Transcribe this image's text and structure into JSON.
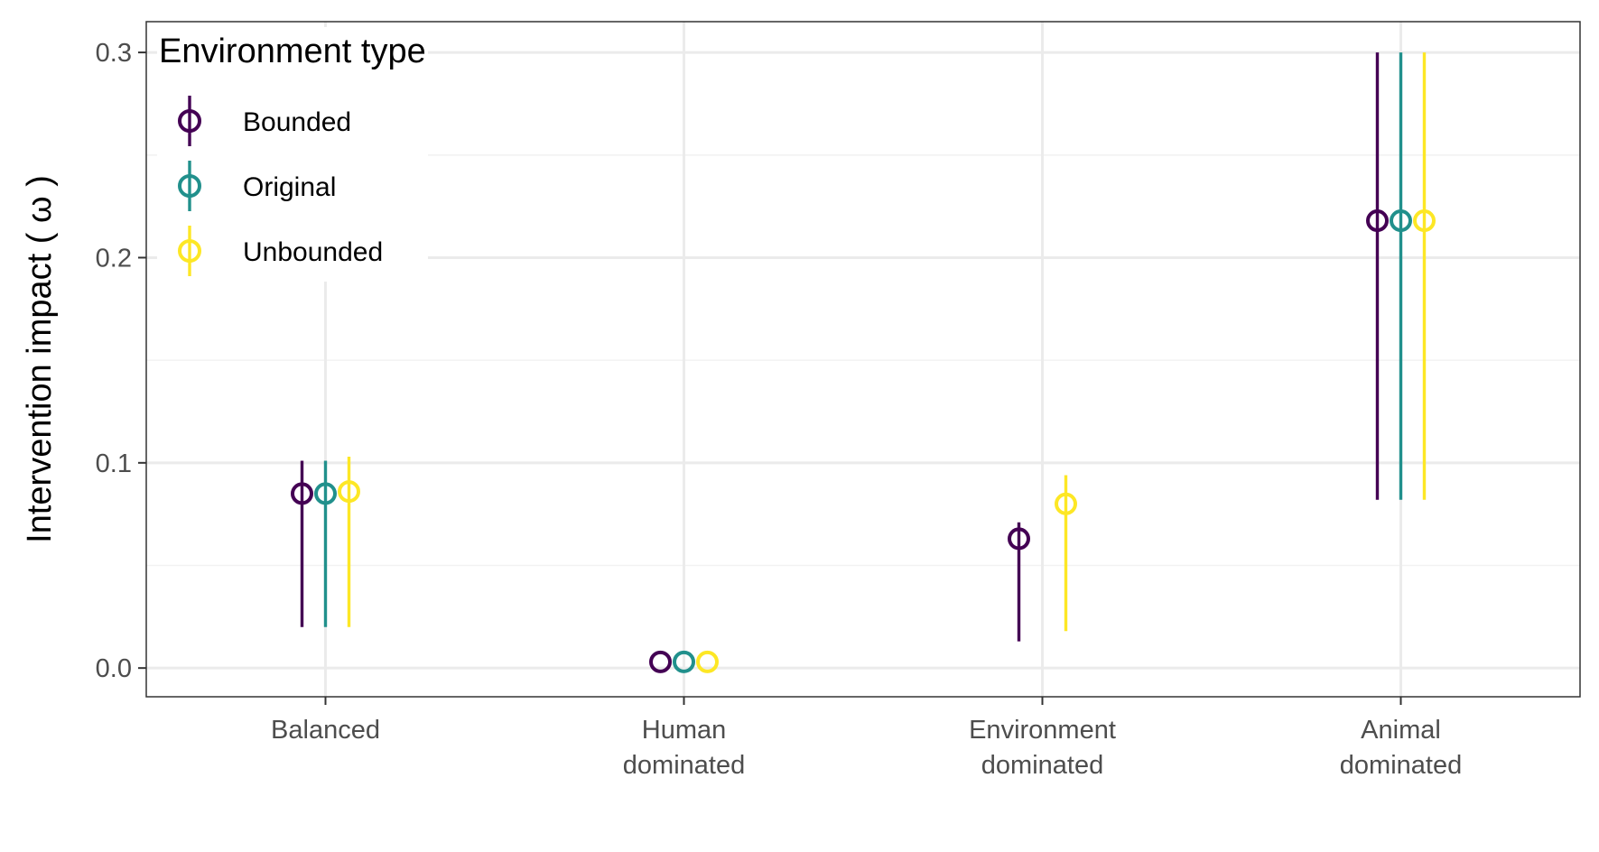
{
  "chart_data": {
    "type": "errorbar",
    "title": "",
    "xlabel": "",
    "ylabel": "Intervention impact ( ω )",
    "ylim": [
      -0.014,
      0.315
    ],
    "yticks": [
      0.0,
      0.1,
      0.2,
      0.3
    ],
    "ytick_labels": [
      "0.0",
      "0.1",
      "0.2",
      "0.3"
    ],
    "grid": true,
    "legend": {
      "title": "Environment type",
      "position": "top-left"
    },
    "categories": [
      [
        "Balanced"
      ],
      [
        "Human",
        "dominated"
      ],
      [
        "Environment",
        "dominated"
      ],
      [
        "Animal",
        "dominated"
      ]
    ],
    "series": [
      {
        "name": "Bounded",
        "color": "#440154",
        "points": [
          {
            "category": 0,
            "y": 0.085,
            "ymin": 0.02,
            "ymax": 0.101
          },
          {
            "category": 1,
            "y": 0.003,
            "ymin": 0.003,
            "ymax": 0.003
          },
          {
            "category": 2,
            "y": 0.063,
            "ymin": 0.013,
            "ymax": 0.071
          },
          {
            "category": 3,
            "y": 0.218,
            "ymin": 0.082,
            "ymax": 0.3
          }
        ]
      },
      {
        "name": "Original",
        "color": "#21908C",
        "points": [
          {
            "category": 0,
            "y": 0.085,
            "ymin": 0.02,
            "ymax": 0.101
          },
          {
            "category": 1,
            "y": 0.003,
            "ymin": 0.003,
            "ymax": 0.003
          },
          {
            "category": 3,
            "y": 0.218,
            "ymin": 0.082,
            "ymax": 0.3
          }
        ]
      },
      {
        "name": "Unbounded",
        "color": "#FDE725",
        "points": [
          {
            "category": 0,
            "y": 0.086,
            "ymin": 0.02,
            "ymax": 0.103
          },
          {
            "category": 1,
            "y": 0.003,
            "ymin": 0.003,
            "ymax": 0.003
          },
          {
            "category": 2,
            "y": 0.08,
            "ymin": 0.018,
            "ymax": 0.094
          },
          {
            "category": 3,
            "y": 0.218,
            "ymin": 0.082,
            "ymax": 0.3
          }
        ]
      }
    ]
  }
}
